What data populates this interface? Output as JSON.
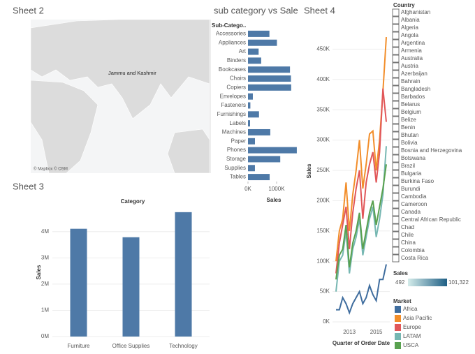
{
  "map": {
    "title": "Sheet 2",
    "labels": [
      "Jammu and Kashmir"
    ],
    "credit": "© Mapbox © OSM"
  },
  "chart_data": [
    {
      "type": "barh",
      "title": "sub category vs Sale",
      "row_header": "Sub-Catego..",
      "x_label": "Sales",
      "color": "#4e79a7",
      "categories": [
        "Accessories",
        "Appliances",
        "Art",
        "Binders",
        "Bookcases",
        "Chairs",
        "Copiers",
        "Envelopes",
        "Fasteners",
        "Furnishings",
        "Labels",
        "Machines",
        "Paper",
        "Phones",
        "Storage",
        "Supplies",
        "Tables"
      ],
      "values": [
        749000,
        1011000,
        372000,
        461000,
        1467000,
        1501000,
        1509000,
        170000,
        83000,
        385000,
        73000,
        779000,
        244000,
        1706000,
        1127000,
        243000,
        757000
      ],
      "xlim": [
        0,
        1830000
      ],
      "xticks": [
        {
          "value": 0,
          "label": "0K"
        },
        {
          "value": 1000000,
          "label": "1000K"
        }
      ]
    },
    {
      "type": "bar",
      "title": "Sheet 3",
      "column_header": "Category",
      "y_label": "Sales",
      "color": "#4e79a7",
      "grid": true,
      "categories": [
        "Furniture",
        "Office Supplies",
        "Technology"
      ],
      "values": [
        4110000,
        3787000,
        4744000
      ],
      "ylim": [
        0,
        4900000
      ],
      "yticks": [
        {
          "value": 0,
          "label": "0M"
        },
        {
          "value": 1000000,
          "label": "1M"
        },
        {
          "value": 2000000,
          "label": "2M"
        },
        {
          "value": 3000000,
          "label": "3M"
        },
        {
          "value": 4000000,
          "label": "4M"
        }
      ]
    },
    {
      "type": "line",
      "title": "Sheet 4",
      "x_label": "Quarter of Order Date",
      "y_label": "Sales",
      "legend_title": "Market",
      "grid": true,
      "categories": [
        null,
        null,
        null,
        null,
        "2013",
        null,
        null,
        null,
        null,
        null,
        null,
        null,
        "2015",
        null,
        null,
        null
      ],
      "series": [
        {
          "name": "Africa",
          "color": "#3f6d9e",
          "values": [
            20000,
            20000,
            40000,
            30000,
            15000,
            30000,
            40000,
            50000,
            30000,
            40000,
            60000,
            45000,
            35000,
            70000,
            70000,
            95000
          ]
        },
        {
          "name": "Asia Pacific",
          "color": "#f28e2b",
          "values": [
            100000,
            150000,
            170000,
            230000,
            150000,
            210000,
            250000,
            300000,
            220000,
            260000,
            310000,
            315000,
            250000,
            300000,
            380000,
            470000
          ]
        },
        {
          "name": "Europe",
          "color": "#e15759",
          "values": [
            80000,
            130000,
            160000,
            190000,
            120000,
            180000,
            220000,
            250000,
            170000,
            230000,
            260000,
            280000,
            230000,
            280000,
            385000,
            330000
          ]
        },
        {
          "name": "LATAM",
          "color": "#76b7b2",
          "values": [
            50000,
            100000,
            110000,
            150000,
            80000,
            120000,
            140000,
            170000,
            110000,
            140000,
            170000,
            190000,
            140000,
            170000,
            210000,
            290000
          ]
        },
        {
          "name": "USCA",
          "color": "#59a14f",
          "values": [
            70000,
            110000,
            120000,
            160000,
            90000,
            130000,
            150000,
            180000,
            120000,
            150000,
            180000,
            200000,
            160000,
            190000,
            220000,
            260000
          ]
        }
      ],
      "ylim": [
        0,
        485000
      ],
      "yticks": [
        {
          "value": 0,
          "label": "0K"
        },
        {
          "value": 50000,
          "label": "50K"
        },
        {
          "value": 100000,
          "label": "100K"
        },
        {
          "value": 150000,
          "label": "150K"
        },
        {
          "value": 200000,
          "label": "200K"
        },
        {
          "value": 250000,
          "label": "250K"
        },
        {
          "value": 300000,
          "label": "300K"
        },
        {
          "value": 350000,
          "label": "350K"
        },
        {
          "value": 400000,
          "label": "400K"
        },
        {
          "value": 450000,
          "label": "450K"
        }
      ]
    }
  ],
  "country_filter": {
    "title": "Country",
    "items": [
      "Afghanistan",
      "Albania",
      "Algeria",
      "Angola",
      "Argentina",
      "Armenia",
      "Australia",
      "Austria",
      "Azerbaijan",
      "Bahrain",
      "Bangladesh",
      "Barbados",
      "Belarus",
      "Belgium",
      "Belize",
      "Benin",
      "Bhutan",
      "Bolivia",
      "Bosnia and Herzegovina",
      "Botswana",
      "Brazil",
      "Bulgaria",
      "Burkina Faso",
      "Burundi",
      "Cambodia",
      "Cameroon",
      "Canada",
      "Central African Republic",
      "Chad",
      "Chile",
      "China",
      "Colombia",
      "Costa Rica"
    ]
  },
  "sales_legend": {
    "title": "Sales",
    "min": 492,
    "max": {
      "value": 101322,
      "label": "101,322"
    },
    "colors": [
      "#d4ecea",
      "#1f5f85"
    ]
  }
}
